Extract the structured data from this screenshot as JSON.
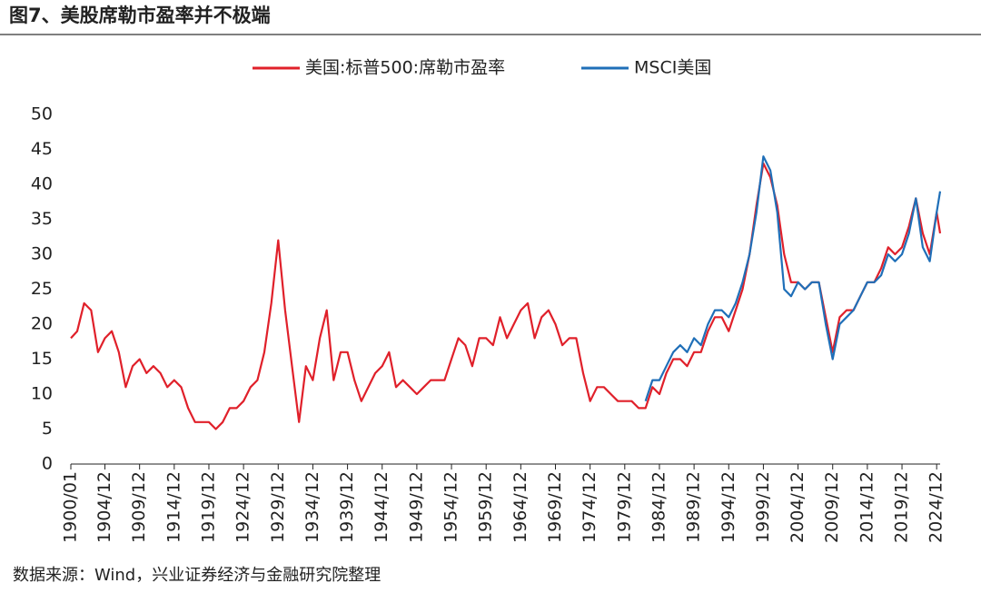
{
  "chart_data": {
    "type": "line",
    "title": "图7、美股席勒市盈率并不极端",
    "source": "数据来源：Wind，兴业证券经济与金融研究院整理",
    "x": [
      "1900/01",
      "1900/12",
      "1901/12",
      "1902/12",
      "1903/12",
      "1904/12",
      "1905/12",
      "1906/12",
      "1907/12",
      "1908/12",
      "1909/12",
      "1910/12",
      "1911/12",
      "1912/12",
      "1913/12",
      "1914/12",
      "1915/12",
      "1916/12",
      "1917/12",
      "1918/12",
      "1919/12",
      "1920/12",
      "1921/12",
      "1922/12",
      "1923/12",
      "1924/12",
      "1925/12",
      "1926/12",
      "1927/12",
      "1928/12",
      "1929/12",
      "1930/12",
      "1931/12",
      "1932/12",
      "1933/12",
      "1934/12",
      "1935/12",
      "1936/12",
      "1937/12",
      "1938/12",
      "1939/12",
      "1940/12",
      "1941/12",
      "1942/12",
      "1943/12",
      "1944/12",
      "1945/12",
      "1946/12",
      "1947/12",
      "1948/12",
      "1949/12",
      "1950/12",
      "1951/12",
      "1952/12",
      "1953/12",
      "1954/12",
      "1955/12",
      "1956/12",
      "1957/12",
      "1958/12",
      "1959/12",
      "1960/12",
      "1961/12",
      "1962/12",
      "1963/12",
      "1964/12",
      "1965/12",
      "1966/12",
      "1967/12",
      "1968/12",
      "1969/12",
      "1970/12",
      "1971/12",
      "1972/12",
      "1973/12",
      "1974/12",
      "1975/12",
      "1976/12",
      "1977/12",
      "1978/12",
      "1979/12",
      "1980/12",
      "1981/12",
      "1982/12",
      "1983/12",
      "1984/12",
      "1985/12",
      "1986/12",
      "1987/12",
      "1988/12",
      "1989/12",
      "1990/12",
      "1991/12",
      "1992/12",
      "1993/12",
      "1994/12",
      "1995/12",
      "1996/12",
      "1997/12",
      "1998/12",
      "1999/12",
      "2000/12",
      "2001/12",
      "2002/12",
      "2003/12",
      "2004/12",
      "2005/12",
      "2006/12",
      "2007/12",
      "2008/12",
      "2009/12",
      "2010/12",
      "2011/12",
      "2012/12",
      "2013/12",
      "2014/12",
      "2015/12",
      "2016/12",
      "2017/12",
      "2018/12",
      "2019/12",
      "2020/12",
      "2021/12",
      "2022/12",
      "2023/12",
      "2024/12",
      "2025/06"
    ],
    "series": [
      {
        "name": "美国:标普500:席勒市盈率",
        "color": "#e0202a",
        "values": [
          18,
          19,
          23,
          22,
          16,
          18,
          19,
          16,
          11,
          14,
          15,
          13,
          14,
          13,
          11,
          12,
          11,
          8,
          6,
          6,
          6,
          5,
          6,
          8,
          8,
          9,
          11,
          12,
          16,
          23,
          32,
          22,
          14,
          6,
          14,
          12,
          18,
          22,
          12,
          16,
          16,
          12,
          9,
          11,
          13,
          14,
          16,
          11,
          12,
          11,
          10,
          11,
          12,
          12,
          12,
          15,
          18,
          17,
          14,
          18,
          18,
          17,
          21,
          18,
          20,
          22,
          23,
          18,
          21,
          22,
          20,
          17,
          18,
          18,
          13,
          9,
          11,
          11,
          10,
          9,
          9,
          9,
          8,
          8,
          11,
          10,
          13,
          15,
          15,
          14,
          16,
          16,
          19,
          21,
          21,
          19,
          22,
          25,
          30,
          37,
          43,
          41,
          37,
          30,
          26,
          26,
          25,
          26,
          26,
          21,
          16,
          21,
          22,
          22,
          24,
          26,
          26,
          28,
          31,
          30,
          31,
          34,
          38,
          33,
          30,
          36,
          33
        ]
      },
      {
        "name": "MSCI美国",
        "color": "#1f6fb8",
        "values": [
          null,
          null,
          null,
          null,
          null,
          null,
          null,
          null,
          null,
          null,
          null,
          null,
          null,
          null,
          null,
          null,
          null,
          null,
          null,
          null,
          null,
          null,
          null,
          null,
          null,
          null,
          null,
          null,
          null,
          null,
          null,
          null,
          null,
          null,
          null,
          null,
          null,
          null,
          null,
          null,
          null,
          null,
          null,
          null,
          null,
          null,
          null,
          null,
          null,
          null,
          null,
          null,
          null,
          null,
          null,
          null,
          null,
          null,
          null,
          null,
          null,
          null,
          null,
          null,
          null,
          null,
          null,
          null,
          null,
          null,
          null,
          null,
          null,
          null,
          null,
          null,
          null,
          null,
          null,
          null,
          null,
          null,
          null,
          9,
          12,
          12,
          14,
          16,
          17,
          16,
          18,
          17,
          20,
          22,
          22,
          21,
          23,
          26,
          30,
          36,
          44,
          42,
          36,
          25,
          24,
          26,
          25,
          26,
          26,
          20,
          15,
          20,
          21,
          22,
          24,
          26,
          26,
          27,
          30,
          29,
          30,
          33,
          38,
          31,
          29,
          36,
          39
        ]
      }
    ],
    "xlim": [
      "1900/01",
      "2025/06"
    ],
    "xticks": [
      "1900/01",
      "1904/12",
      "1909/12",
      "1914/12",
      "1919/12",
      "1924/12",
      "1929/12",
      "1934/12",
      "1939/12",
      "1944/12",
      "1949/12",
      "1954/12",
      "1959/12",
      "1964/12",
      "1969/12",
      "1974/12",
      "1979/12",
      "1984/12",
      "1989/12",
      "1994/12",
      "1999/12",
      "2004/12",
      "2009/12",
      "2014/12",
      "2019/12",
      "2024/12"
    ],
    "ylim": [
      0,
      50
    ],
    "yticks": [
      0,
      5,
      10,
      15,
      20,
      25,
      30,
      35,
      40,
      45,
      50
    ],
    "legend": "top"
  }
}
